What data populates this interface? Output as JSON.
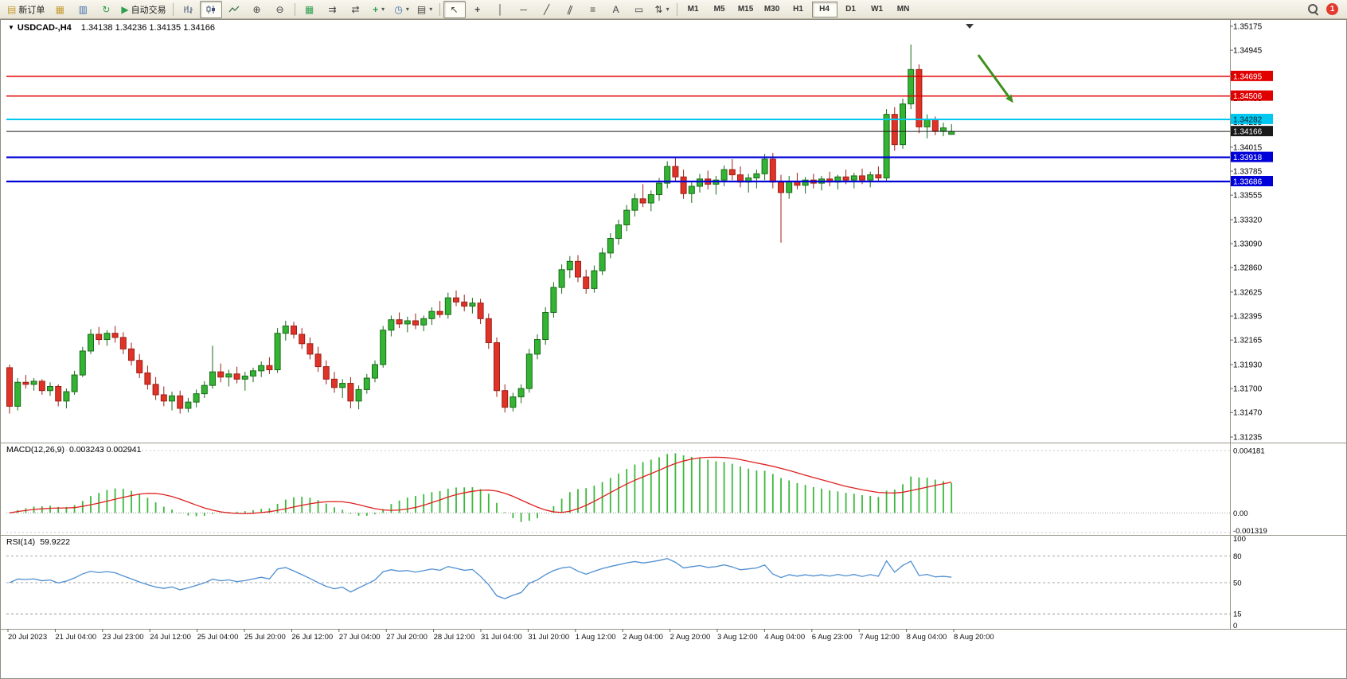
{
  "toolbar": {
    "buttons": {
      "new_order": "新订单",
      "autotrading": "自动交易"
    },
    "timeframes": [
      "M1",
      "M5",
      "M15",
      "M30",
      "H1",
      "H4",
      "D1",
      "W1",
      "MN"
    ],
    "active_timeframe": "H4",
    "notification_count": "1",
    "icons": {
      "new_order": "▤",
      "charts_grid": "▦",
      "market_watch": "▥",
      "refresh": "↻",
      "autotrading_play": "▶",
      "zoom_in": "⊕",
      "zoom_out": "⊖",
      "tile_windows": "▦",
      "auto_scroll": "⇉",
      "chart_shift": "⇄",
      "indicators_plus": "+",
      "periods_clock": "◷",
      "templates": "▤",
      "dropdown": "▾",
      "cursor": "↖",
      "crosshair": "+",
      "vertical_line": "│",
      "horizontal_line": "─",
      "trendline": "╱",
      "channel": "∥",
      "fibonacci": "≡",
      "text": "A",
      "text_label": "▭",
      "arrows": "⇅"
    }
  },
  "chart": {
    "collapse_icon": "▼",
    "symbol_period": "USDCAD-,H4",
    "ohlc": "1.34138 1.34236 1.34135 1.34166"
  },
  "macd": {
    "title": "MACD(12,26,9)",
    "values": "0.003243 0.002941",
    "axis_labels": [
      "0.004181",
      "0.00",
      "-0.001319"
    ],
    "axis_values": [
      0.004181,
      0,
      -0.001319
    ]
  },
  "rsi": {
    "title": "RSI(14)",
    "value": "59.9222",
    "axis_labels": [
      "100",
      "80",
      "50",
      "15",
      "0"
    ],
    "levels": [
      80,
      50,
      15
    ]
  },
  "chart_data": {
    "type": "candlestick",
    "symbol": "USDCAD",
    "period": "H4",
    "y_range": [
      1.31235,
      1.35175
    ],
    "price_axis": [
      "1.35175",
      "1.34945",
      "1.34715",
      "1.34485",
      "1.34255",
      "1.34015",
      "1.33785",
      "1.33555",
      "1.33320",
      "1.33090",
      "1.32860",
      "1.32625",
      "1.32395",
      "1.32165",
      "1.31930",
      "1.31700",
      "1.31470",
      "1.31235"
    ],
    "x_labels": [
      "20 Jul 2023",
      "21 Jul 04:00",
      "23 Jul 23:00",
      "24 Jul 12:00",
      "25 Jul 04:00",
      "25 Jul 20:00",
      "26 Jul 12:00",
      "27 Jul 04:00",
      "27 Jul 20:00",
      "28 Jul 12:00",
      "31 Jul 04:00",
      "31 Jul 20:00",
      "1 Aug 12:00",
      "2 Aug 04:00",
      "2 Aug 20:00",
      "3 Aug 12:00",
      "4 Aug 04:00",
      "6 Aug 23:00",
      "7 Aug 12:00",
      "8 Aug 04:00",
      "8 Aug 20:00"
    ],
    "colors": {
      "up": "#33b533",
      "up_edge": "#1a6a1a",
      "down": "#e03328",
      "down_edge": "#9c1f16",
      "macd_histogram": "#3cb83c",
      "macd_signal": "#e02020",
      "rsi_line": "#4f8fd0"
    },
    "levels": [
      {
        "price": 1.34695,
        "label": "1.34695",
        "color": "#e00000",
        "text_color": "#ffffff",
        "width": 1.4
      },
      {
        "price": 1.34506,
        "label": "1.34506",
        "color": "#e00000",
        "text_color": "#ffffff",
        "width": 1.4
      },
      {
        "price": 1.34282,
        "label": "1.34282",
        "color": "#00c8f0",
        "text_color": "#00222a",
        "width": 2
      },
      {
        "price": 1.34166,
        "label": "1.34166",
        "color": "#1a1a1a",
        "text_color": "#ffffff",
        "width": 1,
        "role": "current-price"
      },
      {
        "price": 1.33918,
        "label": "1.33918",
        "color": "#0000d8",
        "text_color": "#ffffff",
        "width": 2.2
      },
      {
        "price": 1.33686,
        "label": "1.33686",
        "color": "#0000d8",
        "text_color": "#ffffff",
        "width": 2.2
      }
    ],
    "annotations": [
      {
        "type": "arrow",
        "color": "#3f8f1f",
        "from_bar": 119.3,
        "from_price": 1.349,
        "to_bar": 123.6,
        "to_price": 1.3444
      }
    ],
    "indicators": [
      {
        "name": "MACD",
        "params": [
          12,
          26,
          9
        ],
        "display_values": [
          0.003243,
          0.002941
        ]
      },
      {
        "name": "RSI",
        "params": [
          14
        ],
        "display_value": 59.9222
      }
    ],
    "candles_ohlc": [
      [
        1.319,
        1.3193,
        1.3146,
        1.3153
      ],
      [
        1.3153,
        1.318,
        1.3149,
        1.3176
      ],
      [
        1.3176,
        1.3183,
        1.317,
        1.3174
      ],
      [
        1.3174,
        1.318,
        1.3168,
        1.3177
      ],
      [
        1.3177,
        1.3179,
        1.3164,
        1.3168
      ],
      [
        1.3168,
        1.3176,
        1.3163,
        1.3172
      ],
      [
        1.3172,
        1.3174,
        1.3153,
        1.3158
      ],
      [
        1.3158,
        1.317,
        1.3151,
        1.3167
      ],
      [
        1.3167,
        1.3187,
        1.3164,
        1.3183
      ],
      [
        1.3183,
        1.321,
        1.3181,
        1.3206
      ],
      [
        1.3206,
        1.3227,
        1.3203,
        1.3222
      ],
      [
        1.3222,
        1.3229,
        1.3212,
        1.3217
      ],
      [
        1.3217,
        1.3226,
        1.3211,
        1.3223
      ],
      [
        1.3223,
        1.323,
        1.3214,
        1.3219
      ],
      [
        1.3219,
        1.3224,
        1.3203,
        1.3208
      ],
      [
        1.3208,
        1.3214,
        1.3192,
        1.3197
      ],
      [
        1.3197,
        1.3203,
        1.318,
        1.3185
      ],
      [
        1.3185,
        1.3192,
        1.3169,
        1.3174
      ],
      [
        1.3174,
        1.3181,
        1.3159,
        1.3164
      ],
      [
        1.3164,
        1.3172,
        1.3153,
        1.3158
      ],
      [
        1.3158,
        1.3167,
        1.3149,
        1.3163
      ],
      [
        1.3163,
        1.3168,
        1.3146,
        1.3151
      ],
      [
        1.3151,
        1.3161,
        1.3147,
        1.3157
      ],
      [
        1.3157,
        1.3169,
        1.3152,
        1.3165
      ],
      [
        1.3165,
        1.3177,
        1.3161,
        1.3173
      ],
      [
        1.3173,
        1.3211,
        1.317,
        1.3186
      ],
      [
        1.3186,
        1.3194,
        1.3176,
        1.3181
      ],
      [
        1.3181,
        1.3188,
        1.3172,
        1.3184
      ],
      [
        1.3184,
        1.3191,
        1.3175,
        1.3179
      ],
      [
        1.3179,
        1.3186,
        1.3168,
        1.3182
      ],
      [
        1.3182,
        1.319,
        1.3176,
        1.3187
      ],
      [
        1.3187,
        1.3196,
        1.3181,
        1.3192
      ],
      [
        1.3192,
        1.32,
        1.3184,
        1.3188
      ],
      [
        1.3188,
        1.3228,
        1.3185,
        1.3223
      ],
      [
        1.3223,
        1.3235,
        1.3216,
        1.323
      ],
      [
        1.323,
        1.3234,
        1.3218,
        1.3222
      ],
      [
        1.3222,
        1.3228,
        1.3208,
        1.3213
      ],
      [
        1.3213,
        1.3219,
        1.3198,
        1.3203
      ],
      [
        1.3203,
        1.321,
        1.3186,
        1.3191
      ],
      [
        1.3191,
        1.3197,
        1.3174,
        1.3179
      ],
      [
        1.3179,
        1.3186,
        1.3166,
        1.3171
      ],
      [
        1.3171,
        1.3179,
        1.3161,
        1.3175
      ],
      [
        1.3175,
        1.3181,
        1.3151,
        1.3158
      ],
      [
        1.3158,
        1.3173,
        1.315,
        1.3169
      ],
      [
        1.3169,
        1.3184,
        1.3165,
        1.318
      ],
      [
        1.318,
        1.3197,
        1.3176,
        1.3193
      ],
      [
        1.3193,
        1.323,
        1.319,
        1.3226
      ],
      [
        1.3226,
        1.324,
        1.322,
        1.3236
      ],
      [
        1.3236,
        1.3243,
        1.3228,
        1.3232
      ],
      [
        1.3232,
        1.3239,
        1.3224,
        1.3235
      ],
      [
        1.3235,
        1.3242,
        1.3227,
        1.3231
      ],
      [
        1.3231,
        1.324,
        1.3225,
        1.3237
      ],
      [
        1.3237,
        1.3248,
        1.3231,
        1.3244
      ],
      [
        1.3244,
        1.3254,
        1.3238,
        1.3241
      ],
      [
        1.3241,
        1.3262,
        1.3237,
        1.3257
      ],
      [
        1.3257,
        1.3264,
        1.3249,
        1.3253
      ],
      [
        1.3253,
        1.326,
        1.3244,
        1.3249
      ],
      [
        1.3249,
        1.3257,
        1.3242,
        1.3252
      ],
      [
        1.3252,
        1.3256,
        1.3232,
        1.3237
      ],
      [
        1.3237,
        1.3242,
        1.3208,
        1.3214
      ],
      [
        1.3214,
        1.3219,
        1.3162,
        1.3168
      ],
      [
        1.3168,
        1.3174,
        1.3147,
        1.3152
      ],
      [
        1.3152,
        1.3166,
        1.3148,
        1.3162
      ],
      [
        1.3162,
        1.3174,
        1.3156,
        1.317
      ],
      [
        1.317,
        1.3208,
        1.3166,
        1.3203
      ],
      [
        1.3203,
        1.3222,
        1.3198,
        1.3217
      ],
      [
        1.3217,
        1.3248,
        1.3212,
        1.3243
      ],
      [
        1.3243,
        1.3272,
        1.3238,
        1.3267
      ],
      [
        1.3267,
        1.3289,
        1.3261,
        1.3284
      ],
      [
        1.3284,
        1.3297,
        1.3276,
        1.3292
      ],
      [
        1.3292,
        1.3298,
        1.3272,
        1.3277
      ],
      [
        1.3277,
        1.3284,
        1.3261,
        1.3266
      ],
      [
        1.3266,
        1.3288,
        1.3262,
        1.3283
      ],
      [
        1.3283,
        1.3305,
        1.3279,
        1.33
      ],
      [
        1.33,
        1.3319,
        1.3295,
        1.3314
      ],
      [
        1.3314,
        1.3332,
        1.3308,
        1.3327
      ],
      [
        1.3327,
        1.3346,
        1.3321,
        1.3341
      ],
      [
        1.3341,
        1.3357,
        1.3335,
        1.3352
      ],
      [
        1.3352,
        1.3366,
        1.3344,
        1.3348
      ],
      [
        1.3348,
        1.336,
        1.334,
        1.3356
      ],
      [
        1.3356,
        1.3372,
        1.335,
        1.3367
      ],
      [
        1.3367,
        1.3388,
        1.3362,
        1.3383
      ],
      [
        1.3383,
        1.3391,
        1.3368,
        1.3373
      ],
      [
        1.3373,
        1.338,
        1.3352,
        1.3357
      ],
      [
        1.3357,
        1.3368,
        1.3348,
        1.3364
      ],
      [
        1.3364,
        1.3376,
        1.3358,
        1.3371
      ],
      [
        1.3371,
        1.3379,
        1.3361,
        1.3366
      ],
      [
        1.3366,
        1.3374,
        1.3356,
        1.337
      ],
      [
        1.337,
        1.3384,
        1.3364,
        1.338
      ],
      [
        1.338,
        1.339,
        1.337,
        1.3375
      ],
      [
        1.3375,
        1.3383,
        1.3363,
        1.3368
      ],
      [
        1.3368,
        1.3376,
        1.3358,
        1.3372
      ],
      [
        1.3372,
        1.338,
        1.3362,
        1.3376
      ],
      [
        1.3376,
        1.3395,
        1.337,
        1.339
      ],
      [
        1.339,
        1.3396,
        1.3362,
        1.3368
      ],
      [
        1.3368,
        1.3375,
        1.331,
        1.3358
      ],
      [
        1.3358,
        1.3374,
        1.3352,
        1.3369
      ],
      [
        1.3369,
        1.3377,
        1.3361,
        1.3365
      ],
      [
        1.3365,
        1.3373,
        1.3357,
        1.337
      ],
      [
        1.337,
        1.3376,
        1.3362,
        1.3367
      ],
      [
        1.3367,
        1.3374,
        1.336,
        1.3371
      ],
      [
        1.3371,
        1.3378,
        1.3364,
        1.3368
      ],
      [
        1.3368,
        1.3375,
        1.3361,
        1.3373
      ],
      [
        1.3373,
        1.338,
        1.3366,
        1.337
      ],
      [
        1.337,
        1.3377,
        1.3362,
        1.3374
      ],
      [
        1.3374,
        1.3381,
        1.3366,
        1.337
      ],
      [
        1.337,
        1.3378,
        1.3363,
        1.3375
      ],
      [
        1.3375,
        1.3383,
        1.3369,
        1.3372
      ],
      [
        1.3372,
        1.3438,
        1.3368,
        1.3433
      ],
      [
        1.3433,
        1.344,
        1.3398,
        1.3404
      ],
      [
        1.3404,
        1.3448,
        1.34,
        1.3443
      ],
      [
        1.3443,
        1.35,
        1.3438,
        1.3476
      ],
      [
        1.3476,
        1.3481,
        1.3415,
        1.3421
      ],
      [
        1.3421,
        1.3433,
        1.341,
        1.3428
      ],
      [
        1.3428,
        1.3431,
        1.3413,
        1.3417
      ],
      [
        1.3417,
        1.3425,
        1.3412,
        1.342
      ],
      [
        1.34138,
        1.34236,
        1.34135,
        1.34166
      ]
    ]
  }
}
